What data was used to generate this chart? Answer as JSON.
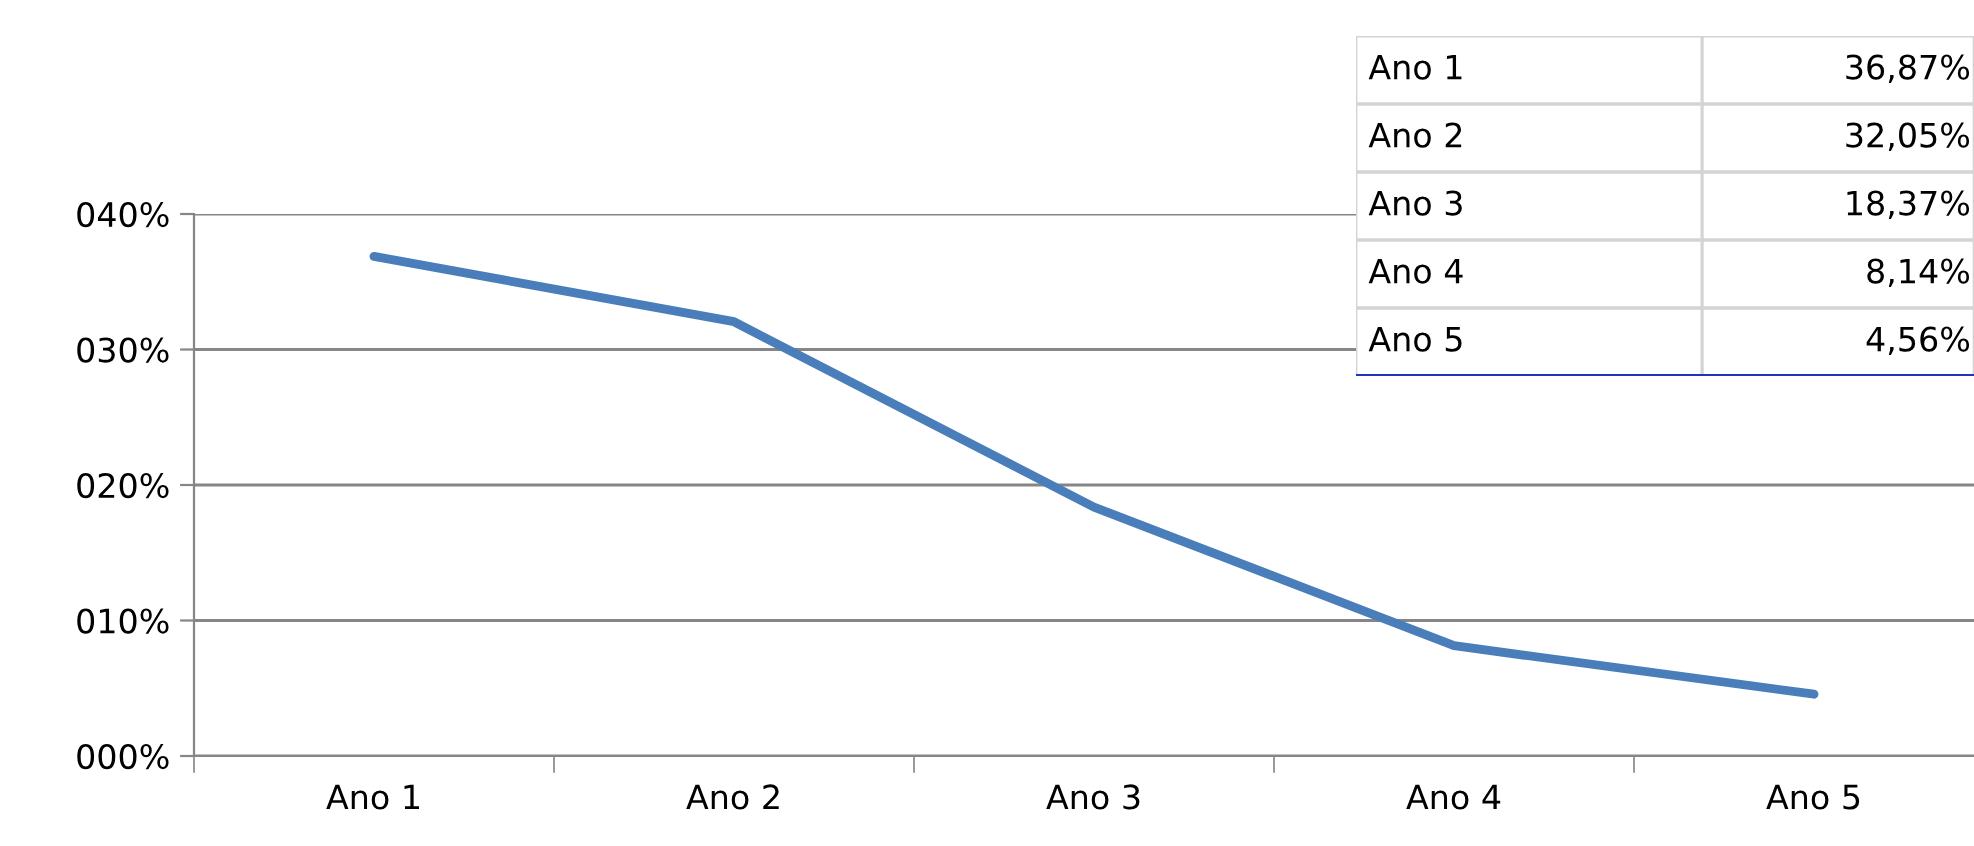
{
  "chart_data": {
    "type": "line",
    "categories": [
      "Ano 1",
      "Ano 2",
      "Ano 3",
      "Ano 4",
      "Ano 5"
    ],
    "series": [
      {
        "color": "#4a7ebb",
        "values": [
          36.87,
          32.05,
          18.37,
          8.14,
          4.56
        ]
      }
    ],
    "value_labels": [
      "36,87%",
      "32,05%",
      "18,37%",
      "8,14%",
      "4,56%"
    ],
    "ylim": [
      0,
      40
    ],
    "yticks": [
      {
        "value": 0,
        "label": "000%"
      },
      {
        "value": 10,
        "label": "010%"
      },
      {
        "value": 20,
        "label": "020%"
      },
      {
        "value": 30,
        "label": "030%"
      },
      {
        "value": 40,
        "label": "040%"
      }
    ],
    "grid": "y",
    "legend": false,
    "marker": "none",
    "line_style": "solid"
  }
}
